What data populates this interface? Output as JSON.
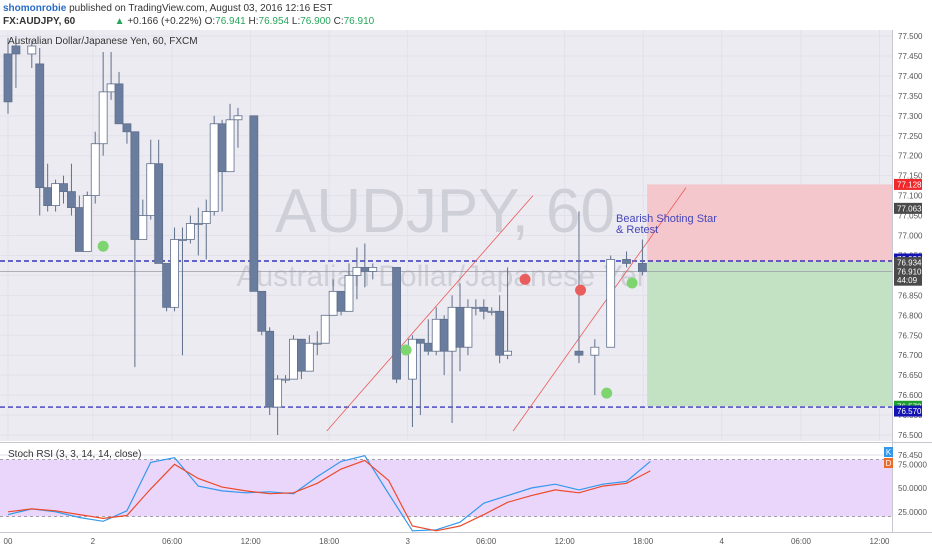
{
  "header": {
    "line1_user": "shomonrobie",
    "line1_text": " published on TradingView.com, August 03, 2016 12:16 EST",
    "symbol": "FX:AUDJPY, 60",
    "change": "+0.166 (+0.22%)",
    "ohlc": [
      {
        "k": "O:",
        "v": "76.941"
      },
      {
        "k": "H:",
        "v": "76.954"
      },
      {
        "k": "L:",
        "v": "76.900"
      },
      {
        "k": "C:",
        "v": "76.910"
      }
    ],
    "first_value": "76.910"
  },
  "colors": {
    "candle_up": "#ffffff",
    "candle_down": "#6a7d9f",
    "wick": "#5f6f8a",
    "dashed_line": "#1414b4",
    "trend_line": "#ec5a5a",
    "target_zone": "#c3e1c3",
    "stop_zone": "#f4c7cc",
    "rsi_k": "#3398ec",
    "rsi_d": "#ec4a2a",
    "rsi_band": "#ead6fb",
    "dot_green": "#7ed56f",
    "dot_red": "#e95d5d"
  },
  "chart_data": [
    {
      "type": "candlestick",
      "title": "Australian Dollar/Japanese Yen, 60, FXCM",
      "watermark_symbol": "AUDJPY, 60",
      "watermark_name": "Australian Dollar/Japanese Yen",
      "annotation": [
        "Bearish Shoting Star",
        "& Retest"
      ],
      "ylim": [
        76.45,
        77.55
      ],
      "price_ticks": [
        "77.500",
        "77.450",
        "77.400",
        "77.350",
        "77.300",
        "77.250",
        "77.200",
        "77.150",
        "77.100",
        "77.050",
        "77.000",
        "76.950",
        "76.900",
        "76.850",
        "76.800",
        "76.750",
        "76.700",
        "76.650",
        "76.600",
        "76.550",
        "76.500",
        "76.450"
      ],
      "x_ticks": [
        {
          "label": "00",
          "i": 0
        },
        {
          "label": "2",
          "i": 10.7
        },
        {
          "label": "06:00",
          "i": 20.7
        },
        {
          "label": "12:00",
          "i": 30.6
        },
        {
          "label": "18:00",
          "i": 40.5
        },
        {
          "label": "3",
          "i": 50.4
        },
        {
          "label": "06:00",
          "i": 60.3
        },
        {
          "label": "12:00",
          "i": 70.2
        },
        {
          "label": "18:00",
          "i": 80.1
        },
        {
          "label": "4",
          "i": 90
        },
        {
          "label": "06:00",
          "i": 100
        },
        {
          "label": "12:00",
          "i": 109.9
        }
      ],
      "price_labels": [
        {
          "text": "77.128",
          "price": 77.128,
          "bg": "#f0272b"
        },
        {
          "text": "77.063",
          "price": 77.068,
          "bg": "#4a4a4a"
        },
        {
          "text": "76.936",
          "price": 76.941,
          "bg": "#1414b4"
        },
        {
          "text": "76.934",
          "price": 76.932,
          "bg": "#4a4a4a"
        },
        {
          "text": "76.910",
          "price": 76.91,
          "bg": "#4a4a4a"
        },
        {
          "text": "44:09",
          "price": 76.888,
          "bg": "#4a4a4a"
        },
        {
          "text": "76.572",
          "price": 76.572,
          "bg": "#1f9e2e"
        },
        {
          "text": "76.570",
          "price": 76.56,
          "bg": "#1414b4"
        }
      ],
      "levels": [
        76.936,
        76.57
      ],
      "last_price": 76.91,
      "risk_reward": {
        "entry": 76.934,
        "stop": 77.128,
        "target": 76.572,
        "from_i": 80.6
      },
      "trend_lines": [
        {
          "from": [
            40.2,
            76.51
          ],
          "to": [
            66.2,
            77.1
          ]
        },
        {
          "from": [
            63.7,
            76.51
          ],
          "to": [
            85.5,
            77.12
          ]
        }
      ],
      "dots": [
        {
          "i": 12,
          "price": 76.973,
          "color": "green"
        },
        {
          "i": 50.2,
          "price": 76.713,
          "color": "green"
        },
        {
          "i": 65.2,
          "price": 76.89,
          "color": "red"
        },
        {
          "i": 72.2,
          "price": 76.863,
          "color": "red"
        },
        {
          "i": 75.5,
          "price": 76.605,
          "color": "green"
        },
        {
          "i": 78.7,
          "price": 76.881,
          "color": "green"
        }
      ],
      "candles": [
        [
          77.455,
          77.495,
          77.305,
          77.335
        ],
        [
          77.475,
          77.5,
          77.37,
          77.455
        ],
        [
          77.455,
          77.49,
          77.42,
          77.475
        ],
        [
          77.43,
          77.47,
          77.05,
          77.12
        ],
        [
          77.12,
          77.18,
          77.06,
          77.075
        ],
        [
          77.075,
          77.14,
          77.06,
          77.13
        ],
        [
          77.13,
          77.15,
          77.08,
          77.11
        ],
        [
          77.11,
          77.18,
          77.05,
          77.07
        ],
        [
          77.07,
          77.1,
          76.96,
          76.96
        ],
        [
          76.96,
          77.11,
          76.96,
          77.1
        ],
        [
          77.1,
          77.26,
          77.08,
          77.23
        ],
        [
          77.23,
          77.46,
          77.2,
          77.36
        ],
        [
          77.36,
          77.46,
          77.34,
          77.38
        ],
        [
          77.38,
          77.41,
          77.28,
          77.28
        ],
        [
          77.28,
          77.28,
          77.23,
          77.26
        ],
        [
          77.26,
          77.26,
          76.67,
          76.99
        ],
        [
          76.99,
          77.09,
          76.99,
          77.05
        ],
        [
          77.05,
          77.24,
          77.04,
          77.18
        ],
        [
          77.18,
          77.24,
          76.93,
          76.93
        ],
        [
          76.93,
          76.93,
          76.81,
          76.82
        ],
        [
          76.82,
          77.02,
          76.81,
          76.99
        ],
        [
          76.99,
          77.02,
          76.7,
          76.99
        ],
        [
          76.99,
          77.05,
          76.98,
          77.03
        ],
        [
          77.03,
          77.07,
          76.95,
          77.03
        ],
        [
          77.03,
          77.09,
          76.94,
          77.06
        ],
        [
          77.06,
          77.3,
          77.05,
          77.28
        ],
        [
          77.28,
          77.29,
          77.06,
          77.16
        ],
        [
          77.16,
          77.33,
          77.16,
          77.29
        ],
        [
          77.29,
          77.32,
          77.22,
          77.3
        ],
        [
          77.3,
          77.3,
          76.86,
          76.86
        ],
        [
          76.86,
          76.86,
          76.75,
          76.76
        ],
        [
          76.76,
          76.77,
          76.55,
          76.57
        ],
        [
          76.57,
          76.65,
          76.5,
          76.64
        ],
        [
          76.64,
          76.65,
          76.63,
          76.64
        ],
        [
          76.64,
          76.75,
          76.64,
          76.74
        ],
        [
          76.74,
          76.74,
          76.64,
          76.66
        ],
        [
          76.66,
          76.75,
          76.66,
          76.73
        ],
        [
          76.73,
          76.76,
          76.7,
          76.73
        ],
        [
          76.73,
          76.8,
          76.73,
          76.8
        ],
        [
          76.8,
          76.89,
          76.8,
          76.86
        ],
        [
          76.86,
          76.86,
          76.8,
          76.81
        ],
        [
          76.81,
          76.93,
          76.81,
          76.9
        ],
        [
          76.9,
          76.97,
          76.84,
          76.92
        ],
        [
          76.92,
          76.98,
          76.87,
          76.91
        ],
        [
          76.91,
          76.93,
          76.89,
          76.92
        ],
        [
          76.92,
          76.92,
          76.63,
          76.64
        ],
        [
          76.64,
          76.75,
          76.52,
          76.74
        ],
        [
          76.74,
          76.74,
          76.55,
          76.73
        ],
        [
          76.73,
          76.79,
          76.7,
          76.71
        ],
        [
          76.71,
          76.82,
          76.7,
          76.79
        ],
        [
          76.79,
          76.8,
          76.65,
          76.71
        ],
        [
          76.71,
          76.85,
          76.53,
          76.82
        ],
        [
          76.82,
          76.88,
          76.66,
          76.72
        ],
        [
          76.72,
          76.84,
          76.7,
          76.82
        ],
        [
          76.82,
          76.84,
          76.8,
          76.82
        ],
        [
          76.82,
          76.84,
          76.79,
          76.81
        ],
        [
          76.81,
          76.82,
          76.8,
          76.81
        ],
        [
          76.81,
          76.85,
          76.68,
          76.7
        ],
        [
          76.7,
          76.92,
          76.69,
          76.71
        ],
        [
          76.71,
          77.06,
          76.68,
          76.7
        ],
        [
          76.7,
          76.74,
          76.6,
          76.72
        ],
        [
          76.72,
          76.95,
          76.72,
          76.94
        ],
        [
          76.94,
          76.96,
          76.92,
          76.93
        ],
        [
          76.93,
          76.99,
          76.9,
          76.91
        ]
      ],
      "candle_index": [
        0,
        1,
        3,
        4,
        5,
        6,
        7,
        8,
        9,
        10,
        11,
        12,
        13,
        14,
        15,
        16,
        17,
        18,
        19,
        20,
        21,
        22,
        23,
        24,
        25,
        26,
        27,
        28,
        29,
        31,
        32,
        33,
        34,
        35,
        36,
        37,
        38,
        39,
        40,
        41,
        42,
        43,
        44,
        45,
        46,
        49,
        51,
        52,
        53,
        54,
        55,
        56,
        57,
        58,
        59,
        60,
        61,
        62,
        63,
        72,
        74,
        76,
        78,
        80
      ]
    },
    {
      "type": "line",
      "title": "Stoch RSI (3, 3, 14, 14, close)",
      "ylim": [
        10,
        90
      ],
      "y_ticks": [
        "75.0000",
        "50.0000",
        "25.0000"
      ],
      "bands": [
        80,
        20
      ],
      "badges": [
        {
          "text": "K",
          "bg": "#3398ec"
        },
        {
          "text": "D",
          "bg": "#ec6a2a"
        }
      ],
      "series": [
        {
          "key": "K",
          "x": [
            0,
            3,
            6,
            9,
            12,
            15,
            18,
            21,
            24,
            27,
            30,
            33,
            36,
            39,
            42,
            45,
            48,
            51,
            54,
            57,
            60,
            63,
            66,
            69,
            72,
            75,
            78,
            81
          ],
          "values": [
            22,
            28,
            25,
            19,
            15,
            26,
            77,
            82,
            52,
            47,
            45,
            46,
            44,
            62,
            78,
            84,
            44,
            5,
            6,
            14,
            34,
            42,
            50,
            54,
            48,
            54,
            57,
            78
          ]
        },
        {
          "key": "D",
          "x": [
            0,
            3,
            6,
            9,
            12,
            15,
            18,
            21,
            24,
            27,
            30,
            33,
            36,
            39,
            42,
            45,
            48,
            51,
            54,
            57,
            60,
            63,
            66,
            69,
            72,
            75,
            78,
            81
          ],
          "values": [
            25,
            28,
            26,
            22,
            18,
            21,
            49,
            75,
            60,
            51,
            47,
            44,
            45,
            55,
            70,
            79,
            58,
            10,
            5,
            10,
            22,
            35,
            42,
            48,
            45,
            52,
            55,
            68
          ]
        }
      ]
    }
  ]
}
